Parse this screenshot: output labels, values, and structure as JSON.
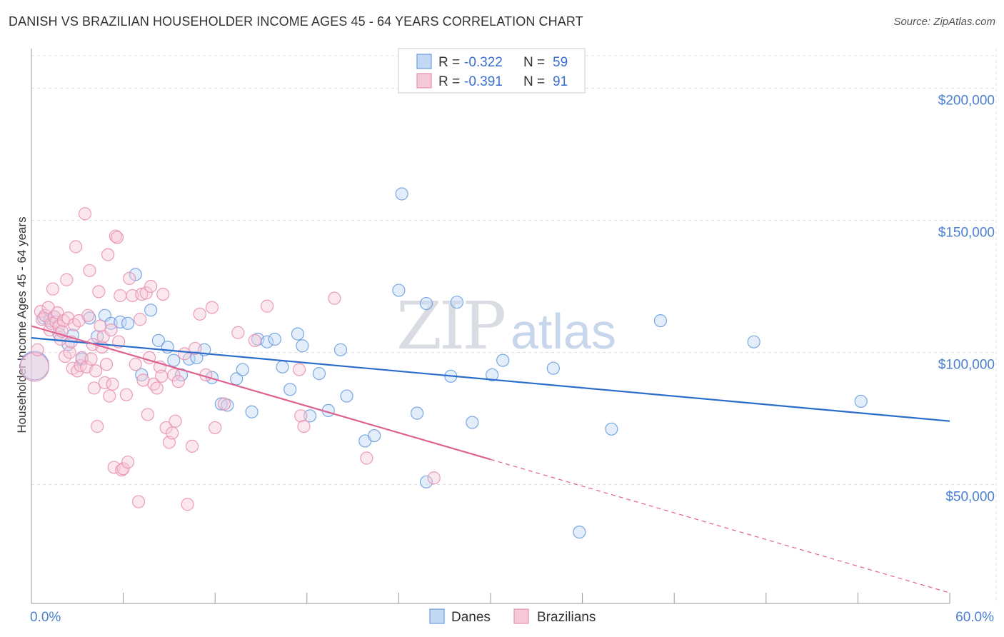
{
  "title": "DANISH VS BRAZILIAN HOUSEHOLDER INCOME AGES 45 - 64 YEARS CORRELATION CHART",
  "source": "Source: ZipAtlas.com",
  "watermark": {
    "zip": "ZIP",
    "atlas": "atlas"
  },
  "legend": {
    "r_label": "R =",
    "n_label": "N =",
    "entries": [
      {
        "r": "-0.322",
        "n": "59"
      },
      {
        "r": "-0.391",
        "n": "91"
      }
    ]
  },
  "colors": {
    "danes": "#6a9ee0",
    "danes_fill": "#c3d8f3",
    "danes_line": "#2a6ccc",
    "brazilians": "#e991b3",
    "brazilians_fill": "#f6c9d9",
    "brazilians_line": "#e0608e",
    "grid": "#dddddd",
    "tick_text": "#4a7fd0"
  },
  "chart_data": {
    "type": "scatter",
    "title": "DANISH VS BRAZILIAN HOUSEHOLDER INCOME AGES 45 - 64 YEARS CORRELATION CHART",
    "xlabel": "",
    "ylabel": "Householder Income Ages 45 - 64 years",
    "xlim": [
      0,
      60
    ],
    "ylim": [
      5000,
      215000
    ],
    "x_tick_labels": [
      "0.0%",
      "60.0%"
    ],
    "y_ticks": [
      50000,
      100000,
      150000,
      200000
    ],
    "y_tick_labels": [
      "$50,000",
      "$100,000",
      "$150,000",
      "$200,000"
    ],
    "grid": true,
    "legend_position": "top-center",
    "series": [
      {
        "name": "Danes",
        "r": -0.322,
        "n": 59,
        "trend": {
          "x0": 0,
          "y0": 105500,
          "x1": 60,
          "y1": 74000
        },
        "points": [
          {
            "x": 0.2,
            "y": 95000,
            "big": true
          },
          {
            "x": 0.8,
            "y": 113000
          },
          {
            "x": 1.2,
            "y": 112000
          },
          {
            "x": 1.5,
            "y": 113500
          },
          {
            "x": 1.8,
            "y": 107000
          },
          {
            "x": 2.4,
            "y": 103000
          },
          {
            "x": 2.7,
            "y": 106500
          },
          {
            "x": 3.3,
            "y": 97500
          },
          {
            "x": 3.8,
            "y": 113000
          },
          {
            "x": 4.3,
            "y": 106000
          },
          {
            "x": 4.8,
            "y": 114000
          },
          {
            "x": 5.2,
            "y": 111000
          },
          {
            "x": 5.8,
            "y": 111500
          },
          {
            "x": 6.3,
            "y": 111000
          },
          {
            "x": 6.8,
            "y": 129500
          },
          {
            "x": 7.2,
            "y": 91500
          },
          {
            "x": 7.8,
            "y": 116000
          },
          {
            "x": 8.3,
            "y": 104500
          },
          {
            "x": 8.9,
            "y": 102000
          },
          {
            "x": 9.3,
            "y": 97000
          },
          {
            "x": 9.8,
            "y": 91500
          },
          {
            "x": 10.3,
            "y": 97500
          },
          {
            "x": 10.8,
            "y": 98000
          },
          {
            "x": 11.3,
            "y": 101000
          },
          {
            "x": 11.8,
            "y": 90500
          },
          {
            "x": 12.4,
            "y": 80500
          },
          {
            "x": 12.8,
            "y": 80000
          },
          {
            "x": 13.4,
            "y": 90000
          },
          {
            "x": 13.8,
            "y": 93500
          },
          {
            "x": 14.4,
            "y": 77500
          },
          {
            "x": 14.8,
            "y": 105000
          },
          {
            "x": 15.4,
            "y": 104000
          },
          {
            "x": 15.9,
            "y": 105000
          },
          {
            "x": 16.4,
            "y": 94500
          },
          {
            "x": 16.9,
            "y": 86000
          },
          {
            "x": 17.4,
            "y": 107000
          },
          {
            "x": 17.7,
            "y": 102500
          },
          {
            "x": 18.2,
            "y": 76000
          },
          {
            "x": 18.8,
            "y": 92000
          },
          {
            "x": 19.4,
            "y": 78000
          },
          {
            "x": 20.2,
            "y": 101000
          },
          {
            "x": 20.6,
            "y": 83500
          },
          {
            "x": 21.8,
            "y": 66500
          },
          {
            "x": 22.4,
            "y": 68500
          },
          {
            "x": 24.0,
            "y": 123500
          },
          {
            "x": 24.2,
            "y": 160000
          },
          {
            "x": 25.2,
            "y": 77000
          },
          {
            "x": 25.8,
            "y": 51000
          },
          {
            "x": 25.8,
            "y": 118500
          },
          {
            "x": 27.4,
            "y": 91000
          },
          {
            "x": 27.8,
            "y": 119000
          },
          {
            "x": 28.8,
            "y": 73500
          },
          {
            "x": 30.1,
            "y": 91500
          },
          {
            "x": 30.8,
            "y": 97000
          },
          {
            "x": 34.1,
            "y": 94000
          },
          {
            "x": 35.8,
            "y": 32000
          },
          {
            "x": 37.9,
            "y": 71000
          },
          {
            "x": 41.1,
            "y": 112000
          },
          {
            "x": 47.2,
            "y": 104000
          },
          {
            "x": 54.2,
            "y": 81500
          }
        ]
      },
      {
        "name": "Brazilians",
        "r": -0.391,
        "n": 91,
        "trend": {
          "x0": 0,
          "y0": 110000,
          "x1": 30,
          "y1": 59500
        },
        "trend_dashed": {
          "x0": 30,
          "y0": 59500,
          "x1": 60,
          "y1": 9000
        },
        "points": [
          {
            "x": 0.2,
            "y": 94500,
            "big": true
          },
          {
            "x": 0.4,
            "y": 101000
          },
          {
            "x": 0.6,
            "y": 115500
          },
          {
            "x": 0.7,
            "y": 112500
          },
          {
            "x": 0.9,
            "y": 114000
          },
          {
            "x": 1.1,
            "y": 117000
          },
          {
            "x": 1.2,
            "y": 108500
          },
          {
            "x": 1.3,
            "y": 111000
          },
          {
            "x": 1.4,
            "y": 124000
          },
          {
            "x": 1.5,
            "y": 113500
          },
          {
            "x": 1.6,
            "y": 111500
          },
          {
            "x": 1.7,
            "y": 115000
          },
          {
            "x": 1.8,
            "y": 110000
          },
          {
            "x": 1.9,
            "y": 105000
          },
          {
            "x": 2.0,
            "y": 108000
          },
          {
            "x": 2.1,
            "y": 112000
          },
          {
            "x": 2.2,
            "y": 98500
          },
          {
            "x": 2.3,
            "y": 127500
          },
          {
            "x": 2.4,
            "y": 113000
          },
          {
            "x": 2.5,
            "y": 100000
          },
          {
            "x": 2.6,
            "y": 104000
          },
          {
            "x": 2.7,
            "y": 94000
          },
          {
            "x": 2.8,
            "y": 110500
          },
          {
            "x": 2.9,
            "y": 140000
          },
          {
            "x": 3.0,
            "y": 93000
          },
          {
            "x": 3.1,
            "y": 112000
          },
          {
            "x": 3.2,
            "y": 95000
          },
          {
            "x": 3.3,
            "y": 98000
          },
          {
            "x": 3.5,
            "y": 152500
          },
          {
            "x": 3.6,
            "y": 94500
          },
          {
            "x": 3.7,
            "y": 114000
          },
          {
            "x": 3.8,
            "y": 131000
          },
          {
            "x": 3.9,
            "y": 97500
          },
          {
            "x": 4.0,
            "y": 103000
          },
          {
            "x": 4.1,
            "y": 86500
          },
          {
            "x": 4.2,
            "y": 93000
          },
          {
            "x": 4.3,
            "y": 72000
          },
          {
            "x": 4.4,
            "y": 123000
          },
          {
            "x": 4.5,
            "y": 110000
          },
          {
            "x": 4.6,
            "y": 102000
          },
          {
            "x": 4.7,
            "y": 106000
          },
          {
            "x": 4.8,
            "y": 88500
          },
          {
            "x": 4.9,
            "y": 95500
          },
          {
            "x": 5.0,
            "y": 137000
          },
          {
            "x": 5.1,
            "y": 83500
          },
          {
            "x": 5.2,
            "y": 108500
          },
          {
            "x": 5.3,
            "y": 88000
          },
          {
            "x": 5.4,
            "y": 56500
          },
          {
            "x": 5.5,
            "y": 144000
          },
          {
            "x": 5.6,
            "y": 143500
          },
          {
            "x": 5.7,
            "y": 104000
          },
          {
            "x": 5.8,
            "y": 121500
          },
          {
            "x": 5.9,
            "y": 55500
          },
          {
            "x": 6.0,
            "y": 56000
          },
          {
            "x": 6.2,
            "y": 84000
          },
          {
            "x": 6.3,
            "y": 58500
          },
          {
            "x": 6.4,
            "y": 128000
          },
          {
            "x": 6.6,
            "y": 121500
          },
          {
            "x": 6.8,
            "y": 95500
          },
          {
            "x": 7.0,
            "y": 43500
          },
          {
            "x": 7.1,
            "y": 112500
          },
          {
            "x": 7.2,
            "y": 122000
          },
          {
            "x": 7.3,
            "y": 89500
          },
          {
            "x": 7.5,
            "y": 122500
          },
          {
            "x": 7.6,
            "y": 76500
          },
          {
            "x": 7.7,
            "y": 98000
          },
          {
            "x": 7.8,
            "y": 125000
          },
          {
            "x": 8.0,
            "y": 88000
          },
          {
            "x": 8.2,
            "y": 86500
          },
          {
            "x": 8.4,
            "y": 94500
          },
          {
            "x": 8.5,
            "y": 91000
          },
          {
            "x": 8.6,
            "y": 122000
          },
          {
            "x": 8.8,
            "y": 71500
          },
          {
            "x": 9.0,
            "y": 66000
          },
          {
            "x": 9.2,
            "y": 69500
          },
          {
            "x": 9.3,
            "y": 91500
          },
          {
            "x": 9.4,
            "y": 74000
          },
          {
            "x": 9.6,
            "y": 89000
          },
          {
            "x": 10.0,
            "y": 99500
          },
          {
            "x": 10.2,
            "y": 42500
          },
          {
            "x": 10.5,
            "y": 64500
          },
          {
            "x": 10.7,
            "y": 101500
          },
          {
            "x": 11.0,
            "y": 114500
          },
          {
            "x": 11.4,
            "y": 91500
          },
          {
            "x": 11.8,
            "y": 117000
          },
          {
            "x": 12.0,
            "y": 71500
          },
          {
            "x": 12.6,
            "y": 80500
          },
          {
            "x": 13.5,
            "y": 107500
          },
          {
            "x": 14.6,
            "y": 104500
          },
          {
            "x": 15.4,
            "y": 117500
          },
          {
            "x": 17.5,
            "y": 93500
          },
          {
            "x": 17.6,
            "y": 76000
          },
          {
            "x": 17.8,
            "y": 72000
          },
          {
            "x": 19.8,
            "y": 120500
          },
          {
            "x": 21.9,
            "y": 60000
          },
          {
            "x": 26.3,
            "y": 52500
          }
        ]
      }
    ]
  }
}
